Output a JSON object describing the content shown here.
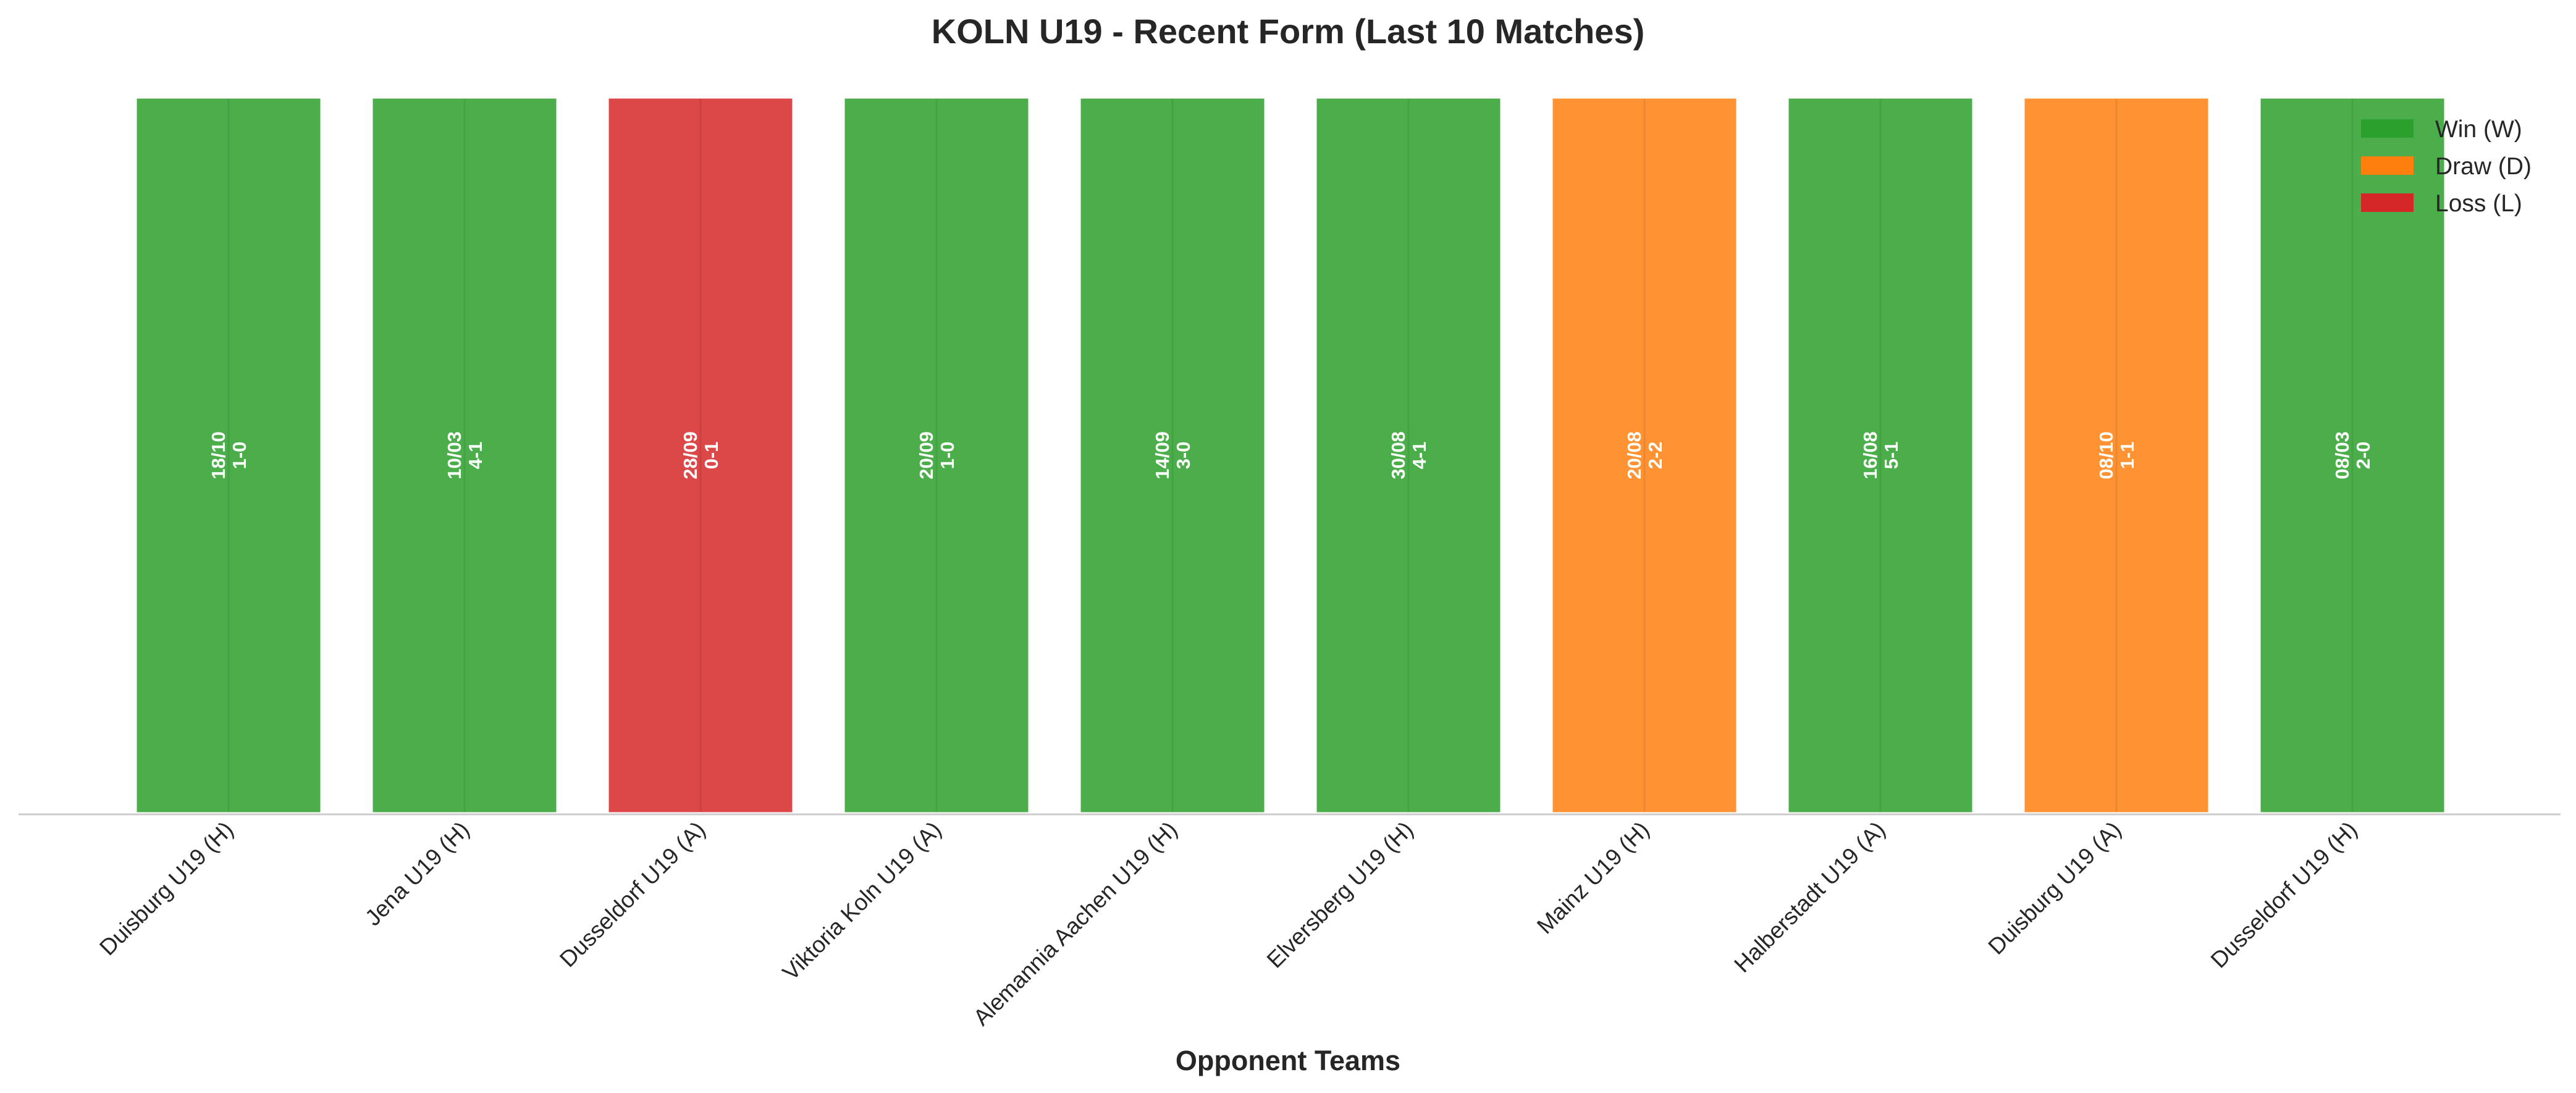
{
  "chart_data": {
    "type": "bar",
    "title": "KOLN U19 - Recent Form (Last 10 Matches)",
    "xlabel": "Opponent Teams",
    "ylabel": "",
    "grid": false,
    "legend_position": "top-right",
    "legend": [
      {
        "key": "W",
        "label": "Win (W)",
        "color": "#2ca02c"
      },
      {
        "key": "D",
        "label": "Draw (D)",
        "color": "#ff7f0e"
      },
      {
        "key": "L",
        "label": "Loss (L)",
        "color": "#d62728"
      }
    ],
    "categories": [
      "Duisburg U19 (H)",
      "Jena U19 (H)",
      "Dusseldorf U19 (A)",
      "Viktoria Koln U19 (A)",
      "Alemannia Aachen U19 (H)",
      "Elversberg U19 (H)",
      "Mainz U19 (H)",
      "Halberstadt U19 (A)",
      "Duisburg U19 (A)",
      "Dusseldorf U19 (H)"
    ],
    "values": [
      1,
      1,
      1,
      1,
      1,
      1,
      1,
      1,
      1,
      1
    ],
    "ylim": [
      0,
      1
    ],
    "matches": [
      {
        "date": "18/10",
        "score": "1-0",
        "result": "W"
      },
      {
        "date": "10/03",
        "score": "4-1",
        "result": "W"
      },
      {
        "date": "28/09",
        "score": "0-1",
        "result": "L"
      },
      {
        "date": "20/09",
        "score": "1-0",
        "result": "W"
      },
      {
        "date": "14/09",
        "score": "3-0",
        "result": "W"
      },
      {
        "date": "30/08",
        "score": "4-1",
        "result": "W"
      },
      {
        "date": "20/08",
        "score": "2-2",
        "result": "D"
      },
      {
        "date": "16/08",
        "score": "5-1",
        "result": "W"
      },
      {
        "date": "08/10",
        "score": "1-1",
        "result": "D"
      },
      {
        "date": "08/03",
        "score": "2-0",
        "result": "W"
      }
    ]
  }
}
